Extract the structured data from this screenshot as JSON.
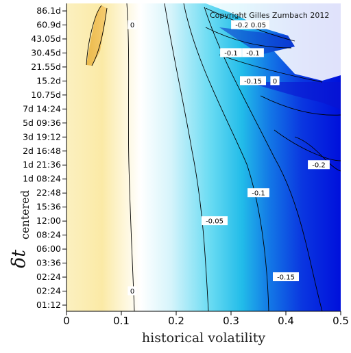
{
  "chart_data": {
    "type": "heatmap",
    "title": "",
    "xlabel": "historical volatility",
    "ylabel_main": "δt",
    "ylabel_sub": "centered",
    "xlim": [
      0,
      0.5
    ],
    "x_ticks": [
      "0",
      "0.1",
      "0.2",
      "0.3",
      "0.4",
      "0.5"
    ],
    "y_ticks": [
      "86.1d",
      "60.9d",
      "43.05d",
      "30.45d",
      "21.55d",
      "15.2d",
      "10.75d",
      "7d 14:24",
      "5d 09:36",
      "3d 19:12",
      "2d 16:48",
      "1d 21:36",
      "1d 08:24",
      "22:48",
      "15:36",
      "12:00",
      "08:24",
      "06:00",
      "03:36",
      "02:24",
      "02:24",
      "01:12"
    ],
    "contour_levels": [
      "0",
      "-0.05",
      "-0.1",
      "-0.15",
      "-0.2"
    ],
    "contour_labels": [
      {
        "text": "0",
        "x": 0.12,
        "y": "60.9d"
      },
      {
        "text": "0",
        "x": 0.12,
        "y": "02:24"
      },
      {
        "text": "-0.05",
        "x": 0.27,
        "y": "12:00"
      },
      {
        "text": "-0.1",
        "x": 0.35,
        "y": "22:48"
      },
      {
        "text": "-0.15",
        "x": 0.4,
        "y": "02:24"
      },
      {
        "text": "-0.2",
        "x": 0.46,
        "y": "1d 21:36"
      },
      {
        "text": "-0.2",
        "x": 0.32,
        "y": "60.9d"
      },
      {
        "text": "0.05",
        "x": 0.35,
        "y": "60.9d"
      },
      {
        "text": "-0.1",
        "x": 0.3,
        "y": "30.45d"
      },
      {
        "text": "-0.1",
        "x": 0.34,
        "y": "30.45d"
      },
      {
        "text": "-0.15",
        "x": 0.34,
        "y": "15.2d"
      },
      {
        "text": "0",
        "x": 0.38,
        "y": "15.2d"
      }
    ],
    "colormap": {
      "positive": "#f2d25c",
      "zero": "#ffffff",
      "negative_mid": "#1cc6ee",
      "negative_strong": "#0010dc"
    },
    "grid": false
  },
  "copyright": "Copyright Gilles Zumbach 2012"
}
